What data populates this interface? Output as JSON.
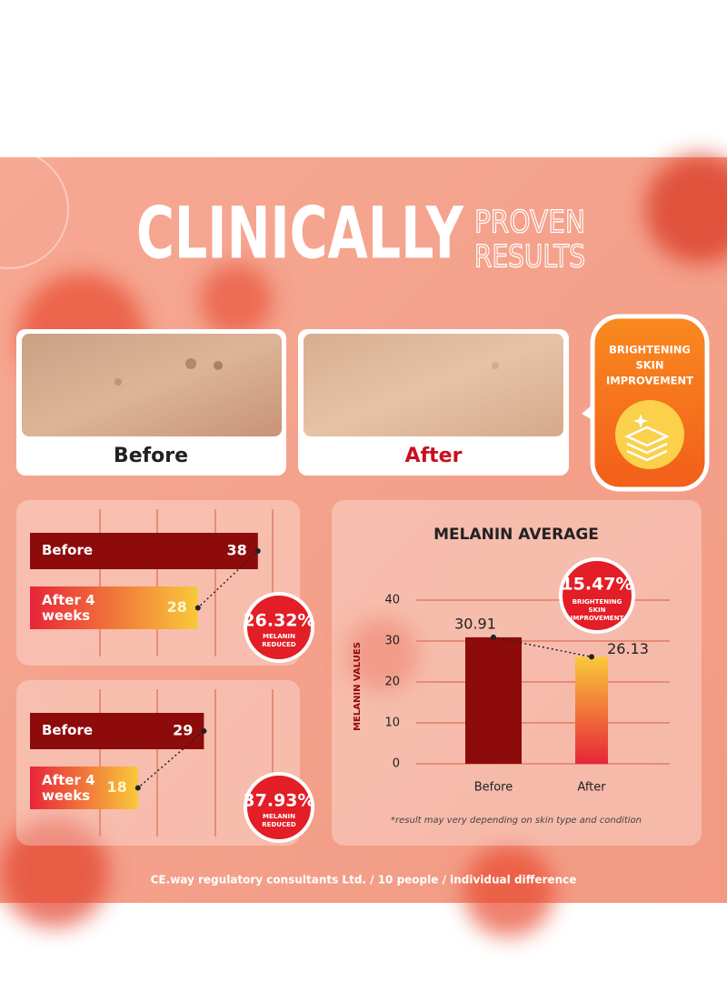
{
  "header": {
    "title": "CLINICALLY",
    "subtitle_lines": [
      "PROVEN",
      "RESULTS"
    ]
  },
  "photos": [
    {
      "label": "Before"
    },
    {
      "label": "After"
    }
  ],
  "badge": {
    "lines": [
      "BRIGHTENING",
      "SKIN",
      "IMPROVEMENT"
    ]
  },
  "chart_data": [
    {
      "type": "hbar",
      "categories": [
        "Before",
        "After 4 weeks"
      ],
      "values": [
        38,
        28
      ],
      "colors": [
        "#8e0b0b",
        "#f9c93a"
      ],
      "annotation": {
        "value": "26.32%",
        "label": "MELANIN REDUCED"
      }
    },
    {
      "type": "hbar",
      "categories": [
        "Before",
        "After 4 weeks"
      ],
      "values": [
        29,
        18
      ],
      "colors": [
        "#8e0b0b",
        "#f9c93a"
      ],
      "annotation": {
        "value": "37.93%",
        "label": "MELANIN REDUCED"
      }
    },
    {
      "type": "bar",
      "title": "MELANIN AVERAGE",
      "y_label": "MELANIN VALUES",
      "categories": [
        "Before",
        "After"
      ],
      "values": [
        30.91,
        26.13
      ],
      "colors": [
        "#8e0b0b",
        "#f9c93a"
      ],
      "ylim": [
        0,
        40
      ],
      "yticks": [
        0,
        10,
        20,
        30,
        40
      ],
      "grid": true,
      "annotation": {
        "value": "15.47%",
        "label": "BRIGHTENING SKIN IMPROVEMENT"
      },
      "note": "*result may very depending on skin type and condition"
    }
  ],
  "footer": "CE.way regulatory consultants Ltd. / 10 people / individual difference"
}
